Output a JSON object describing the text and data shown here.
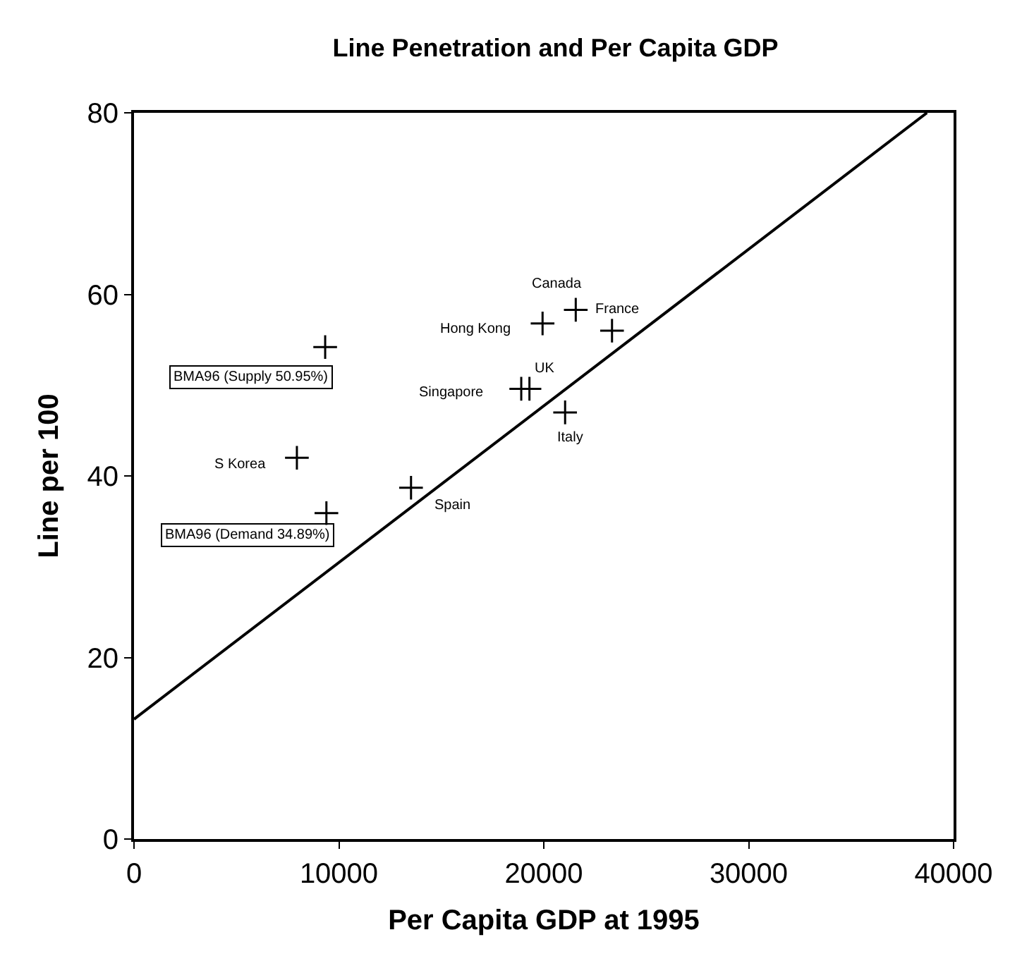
{
  "chart_data": {
    "type": "scatter",
    "title": "Line Penetration and Per Capita GDP",
    "xlabel": "Per Capita GDP at 1995",
    "ylabel": "Line per 100",
    "x": [
      9330,
      9390,
      7950,
      13520,
      19940,
      21560,
      23330,
      19300,
      18900,
      21040
    ],
    "values": [
      54.2,
      35.9,
      42.0,
      38.7,
      56.8,
      58.3,
      56.0,
      49.6,
      49.6,
      47.0
    ],
    "color": "#000000",
    "marker": "cross",
    "series": [
      {
        "type": "line",
        "x": [
          0,
          38700
        ],
        "values": [
          13.2,
          80
        ],
        "color": "#000000",
        "marker": "none"
      }
    ],
    "annotations": [
      {
        "text": "BMA96 (Supply 50.95%)",
        "x": 9330,
        "y": 54.2
      },
      {
        "text": "BMA96 (Demand 34.89%)",
        "x": 9390,
        "y": 35.9
      },
      {
        "text": "S Korea",
        "x": 7950,
        "y": 42.0
      },
      {
        "text": "Spain",
        "x": 13520,
        "y": 38.7
      },
      {
        "text": "Hong Kong",
        "x": 19940,
        "y": 56.8
      },
      {
        "text": "Canada",
        "x": 21560,
        "y": 58.3
      },
      {
        "text": "France",
        "x": 23330,
        "y": 56.0
      },
      {
        "text": "UK",
        "x": 19300,
        "y": 49.6
      },
      {
        "text": "Singapore",
        "x": 18900,
        "y": 49.6
      },
      {
        "text": "Italy",
        "x": 21040,
        "y": 47.0
      }
    ],
    "xlim": [
      0,
      40000
    ],
    "xticks": [
      0,
      10000,
      20000,
      30000,
      40000
    ],
    "ylim": [
      0,
      80
    ],
    "yticks": [
      0,
      20,
      40,
      60,
      80
    ]
  }
}
